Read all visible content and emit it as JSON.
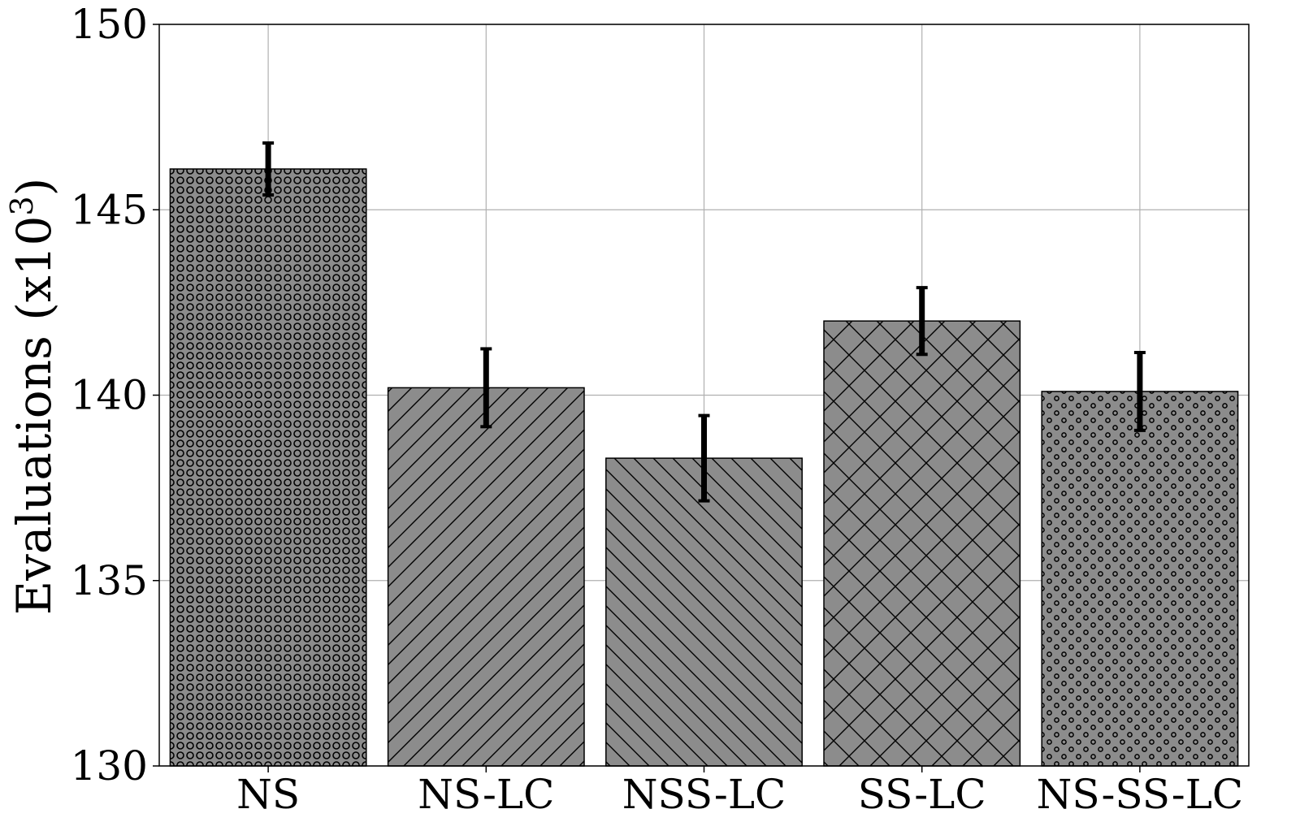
{
  "chart_data": {
    "type": "bar",
    "title": "",
    "xlabel": "",
    "ylabel": {
      "main": "Evaluations (x10",
      "superscript": "3",
      "close": ")"
    },
    "categories": [
      "NS",
      "NS-LC",
      "NSS-LC",
      "SS-LC",
      "NS-SS-LC"
    ],
    "values": [
      146.1,
      140.2,
      138.3,
      142.0,
      140.1
    ],
    "error": [
      0.7,
      1.05,
      1.15,
      0.9,
      1.05
    ],
    "ylim": [
      130,
      150
    ],
    "yticks": [
      130,
      135,
      140,
      145,
      150
    ],
    "grid": true,
    "bar_color": "#8c8c8c",
    "edge_color": "#000000",
    "grid_color": "#b0b0b0",
    "hatches": [
      "small-circles",
      "forward-diagonal",
      "back-diagonal",
      "crosshatch",
      "dots"
    ]
  }
}
